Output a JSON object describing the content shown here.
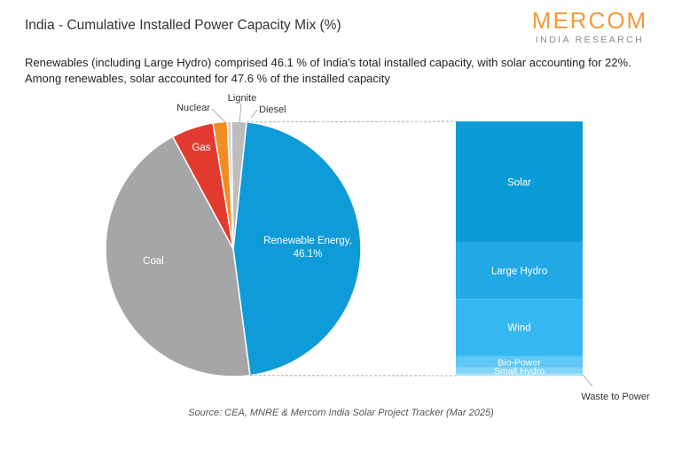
{
  "header": {
    "title": "India - Cumulative Installed Power Capacity Mix (%)",
    "logo_word": "MERCOM",
    "logo_sub": "INDIA RESEARCH"
  },
  "subtitle_lines": [
    "Renewables (including Large Hydro) comprised 46.1 % of India's total installed capacity, with solar accounting for 22%.",
    "Among renewables, solar accounted for 47.6 % of the installed capacity"
  ],
  "source": "Source: CEA, MNRE & Mercom India Solar Project Tracker (Mar 2025)",
  "colors": {
    "renewable": "#0f9bd7",
    "coal": "#a6a6a8",
    "gas": "#e33a2f",
    "nuclear": "#f08c20",
    "lignite": "#cfcfcf",
    "diesel": "#bdbdbd",
    "solar": "#0b9bd7",
    "large_hydro": "#22a8e4",
    "wind": "#35b8f2",
    "bio_power": "#5ec8f6",
    "small_hydro": "#7fd4f8",
    "waste_to_power": "#a7e1fa",
    "connector": "#999999"
  },
  "chart_data": [
    {
      "type": "pie",
      "slices": [
        {
          "label": "Renewable Energy",
          "value_label": "46.1%",
          "value": 46.1,
          "color": "#0f9bd7",
          "label_inside": true,
          "label_color": "#ffffff"
        },
        {
          "label": "Coal",
          "value": 44.1,
          "color": "#a6a6a8",
          "label_inside": true,
          "label_color": "#ffffff"
        },
        {
          "label": "Gas",
          "value": 5.3,
          "color": "#e33a2f",
          "label_inside": true,
          "label_color": "#ffffff"
        },
        {
          "label": "Nuclear",
          "value": 1.8,
          "color": "#f08c20",
          "label_inside": false
        },
        {
          "label": "Lignite",
          "value": 0.5,
          "color": "#cfcfcf",
          "label_inside": false
        },
        {
          "label": "Diesel",
          "value": 1.9,
          "color": "#bdbdbd",
          "label_inside": false
        }
      ]
    },
    {
      "type": "bar",
      "stacked": true,
      "breakdown_of": "Renewable Energy",
      "segments": [
        {
          "label": "Solar",
          "value": 47.6,
          "color": "#0b9bd7"
        },
        {
          "label": "Large Hydro",
          "value": 22.2,
          "color": "#22a8e4"
        },
        {
          "label": "Wind",
          "value": 22.5,
          "color": "#35b8f2"
        },
        {
          "label": "Bio-Power",
          "value": 4.5,
          "color": "#5ec8f6"
        },
        {
          "label": "Small Hydro",
          "value": 2.3,
          "color": "#7fd4f8"
        },
        {
          "label": "Waste to Power",
          "value": 0.9,
          "color": "#a7e1fa"
        }
      ]
    }
  ]
}
